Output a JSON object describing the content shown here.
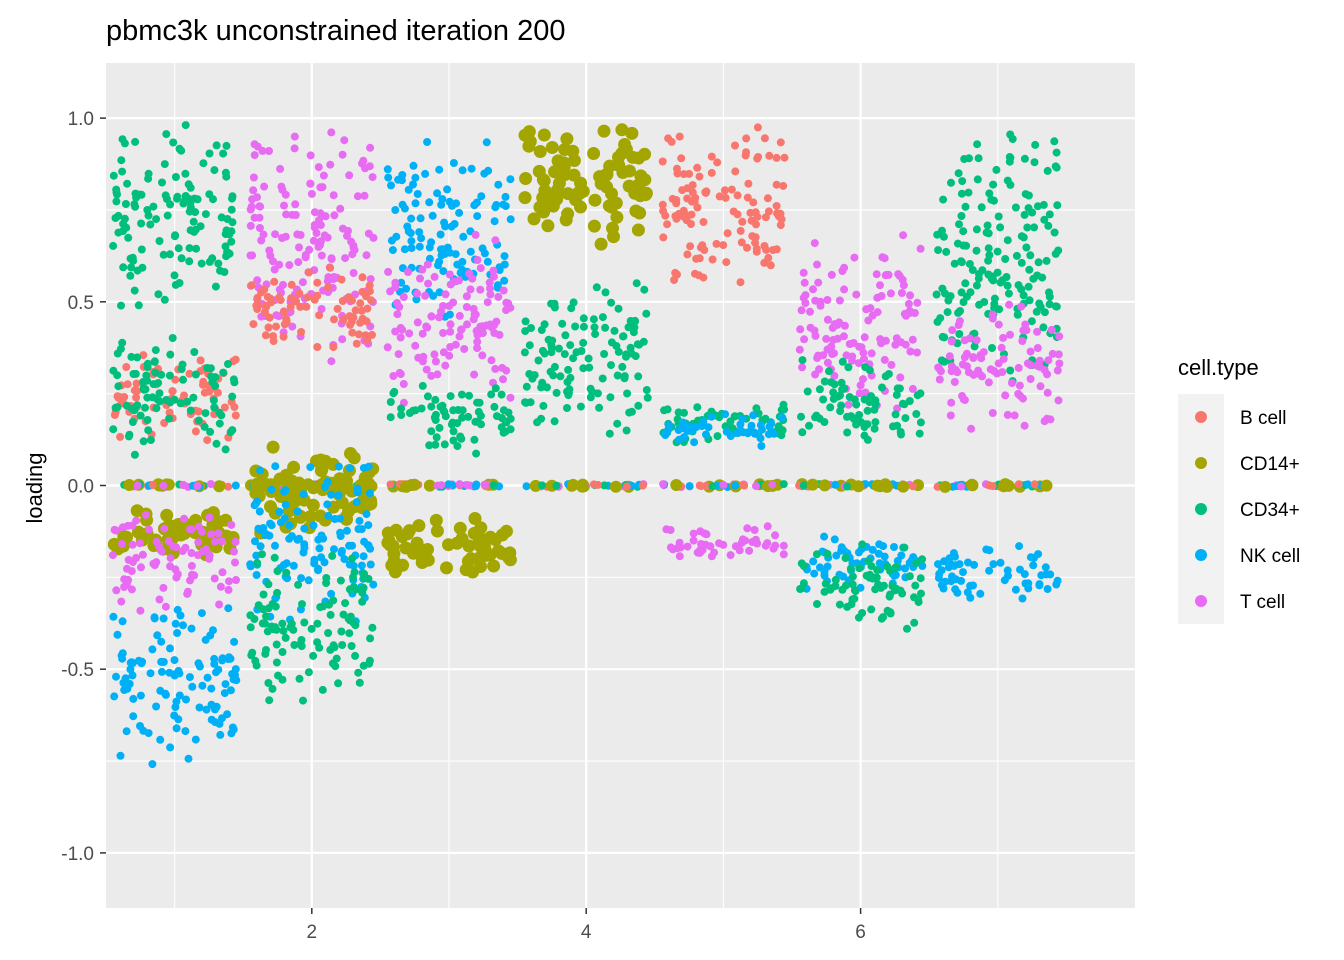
{
  "chart_data": {
    "type": "scatter",
    "title": "pbmc3k unconstrained iteration 200",
    "xlabel": "",
    "ylabel": "loading",
    "xlim": [
      0.5,
      8.0
    ],
    "ylim": [
      -1.15,
      1.15
    ],
    "x_ticks": [
      2,
      4,
      6
    ],
    "y_ticks": [
      1.0,
      0.5,
      0.0,
      -0.5,
      -1.0
    ],
    "y_tick_labels": [
      "1.0",
      "0.5",
      "0.0",
      "-0.5",
      "-1.0"
    ],
    "grid": true,
    "jitter_width": 0.45,
    "legend": {
      "title": "cell.type",
      "placement": "right",
      "entries": [
        "B cell",
        "CD14+",
        "CD34+",
        "NK cell",
        "T cell"
      ]
    },
    "colors": {
      "B cell": "#F8766D",
      "CD14+": "#A3A500",
      "CD34+": "#00BF7D",
      "NK cell": "#00B0F6",
      "T cell": "#E76BF3"
    },
    "factors": [
      {
        "x": 1,
        "clusters": [
          {
            "type": "CD34+",
            "y_min": 0.45,
            "y_max": 1.0
          },
          {
            "type": "B cell",
            "y_min": 0.1,
            "y_max": 0.38
          },
          {
            "type": "CD34+",
            "y_min": 0.08,
            "y_max": 0.42
          },
          {
            "type": "CD14+",
            "y_min": -0.2,
            "y_max": -0.06
          },
          {
            "type": "T cell",
            "y_min": -0.35,
            "y_max": -0.05
          },
          {
            "type": "NK cell",
            "y_min": -0.78,
            "y_max": -0.3
          }
        ]
      },
      {
        "x": 2,
        "clusters": [
          {
            "type": "T cell",
            "y_min": 0.25,
            "y_max": 1.0
          },
          {
            "type": "B cell",
            "y_min": 0.35,
            "y_max": 0.62
          },
          {
            "type": "CD14+",
            "y_min": -0.15,
            "y_max": 0.12
          },
          {
            "type": "NK cell",
            "y_min": -0.4,
            "y_max": 0.1
          },
          {
            "type": "CD34+",
            "y_min": -0.6,
            "y_max": -0.15
          }
        ]
      },
      {
        "x": 3,
        "clusters": [
          {
            "type": "NK cell",
            "y_min": 0.45,
            "y_max": 0.95
          },
          {
            "type": "T cell",
            "y_min": 0.2,
            "y_max": 0.7
          },
          {
            "type": "CD34+",
            "y_min": 0.08,
            "y_max": 0.3
          },
          {
            "type": "CD14+",
            "y_min": -0.25,
            "y_max": -0.08
          }
        ]
      },
      {
        "x": 4,
        "clusters": [
          {
            "type": "CD14+",
            "y_min": 0.65,
            "y_max": 1.0
          },
          {
            "type": "CD34+",
            "y_min": 0.1,
            "y_max": 0.6
          }
        ]
      },
      {
        "x": 5,
        "clusters": [
          {
            "type": "B cell",
            "y_min": 0.5,
            "y_max": 1.0
          },
          {
            "type": "CD34+",
            "y_min": 0.1,
            "y_max": 0.25
          },
          {
            "type": "NK cell",
            "y_min": 0.1,
            "y_max": 0.2
          },
          {
            "type": "T cell",
            "y_min": -0.2,
            "y_max": -0.1
          }
        ]
      },
      {
        "x": 6,
        "clusters": [
          {
            "type": "T cell",
            "y_min": 0.2,
            "y_max": 0.7
          },
          {
            "type": "CD34+",
            "y_min": 0.1,
            "y_max": 0.35
          },
          {
            "type": "NK cell",
            "y_min": -0.3,
            "y_max": -0.12
          },
          {
            "type": "CD34+",
            "y_min": -0.4,
            "y_max": -0.15
          }
        ]
      },
      {
        "x": 7,
        "clusters": [
          {
            "type": "CD34+",
            "y_min": 0.2,
            "y_max": 1.0
          },
          {
            "type": "T cell",
            "y_min": 0.15,
            "y_max": 0.5
          },
          {
            "type": "NK cell",
            "y_min": -0.32,
            "y_max": -0.15
          }
        ]
      }
    ],
    "zero_line_types": [
      "B cell",
      "CD14+",
      "CD34+",
      "NK cell",
      "T cell"
    ]
  }
}
